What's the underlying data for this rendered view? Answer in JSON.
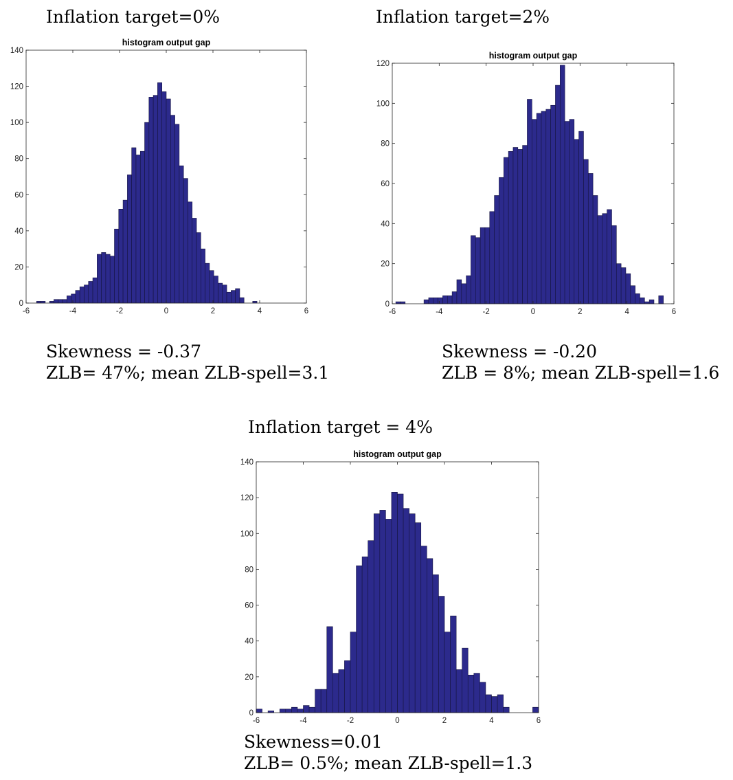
{
  "panels": [
    {
      "heading": "Inflation target=0%",
      "caption_line1": "Skewness = -0.37",
      "caption_line2": "ZLB= 47%; mean ZLB-spell=3.1"
    },
    {
      "heading": "Inflation target=2%",
      "caption_line1": "Skewness = -0.20",
      "caption_line2": "ZLB = 8%; mean ZLB-spell=1.6"
    },
    {
      "heading": "Inflation target = 4%",
      "caption_line1": "Skewness=0.01",
      "caption_line2": "ZLB= 0.5%; mean ZLB-spell=1.3"
    }
  ],
  "chart_data": [
    {
      "type": "bar",
      "title": "histogram output gap",
      "xlabel": "",
      "ylabel": "",
      "xlim": [
        -6,
        6
      ],
      "ylim": [
        0,
        140
      ],
      "xticks": [
        -6,
        -4,
        -2,
        0,
        2,
        4,
        6
      ],
      "yticks": [
        0,
        20,
        40,
        60,
        80,
        100,
        120,
        140
      ],
      "grid": false,
      "bar_color": "#2c2a8c",
      "bin_start": -5.55,
      "bin_width": 0.185,
      "counts": [
        1,
        1,
        0,
        1,
        2,
        2,
        2,
        4,
        5,
        7,
        9,
        10,
        12,
        14,
        27,
        28,
        27,
        26,
        41,
        52,
        57,
        71,
        86,
        82,
        84,
        100,
        114,
        115,
        122,
        117,
        113,
        104,
        99,
        76,
        69,
        56,
        47,
        39,
        30,
        22,
        18,
        15,
        11,
        10,
        6,
        7,
        8,
        3,
        0,
        0,
        1
      ]
    },
    {
      "type": "bar",
      "title": "histogram output gap",
      "xlabel": "",
      "ylabel": "",
      "xlim": [
        -6,
        6
      ],
      "ylim": [
        0,
        120
      ],
      "xticks": [
        -6,
        -4,
        -2,
        0,
        2,
        4,
        6
      ],
      "yticks": [
        0,
        20,
        40,
        60,
        80,
        100,
        120
      ],
      "grid": false,
      "bar_color": "#2c2a8c",
      "bin_start": -5.85,
      "bin_width": 0.2,
      "counts": [
        1,
        1,
        0,
        0,
        0,
        0,
        2,
        3,
        3,
        3,
        4,
        4,
        6,
        12,
        10,
        14,
        34,
        33,
        38,
        38,
        46,
        54,
        63,
        73,
        76,
        78,
        77,
        79,
        102,
        92,
        95,
        96,
        97,
        99,
        109,
        119,
        91,
        92,
        82,
        86,
        72,
        65,
        54,
        44,
        45,
        47,
        39,
        20,
        18,
        15,
        9,
        5,
        3,
        1,
        2,
        0,
        4
      ]
    },
    {
      "type": "bar",
      "title": "histogram output gap",
      "xlabel": "",
      "ylabel": "",
      "xlim": [
        -6,
        6
      ],
      "ylim": [
        0,
        140
      ],
      "xticks": [
        -6,
        -4,
        -2,
        0,
        2,
        4,
        6
      ],
      "yticks": [
        0,
        20,
        40,
        60,
        80,
        100,
        120,
        140
      ],
      "grid": false,
      "bar_color": "#2c2a8c",
      "bin_start": -6.0,
      "bin_width": 0.25,
      "counts": [
        2,
        0,
        1,
        0,
        2,
        2,
        3,
        2,
        4,
        3,
        13,
        13,
        48,
        22,
        24,
        29,
        45,
        82,
        87,
        96,
        111,
        113,
        108,
        123,
        122,
        114,
        111,
        106,
        93,
        86,
        77,
        65,
        45,
        54,
        24,
        36,
        21,
        22,
        17,
        10,
        9,
        10,
        3,
        0,
        0,
        0,
        0,
        3,
        0
      ]
    }
  ]
}
